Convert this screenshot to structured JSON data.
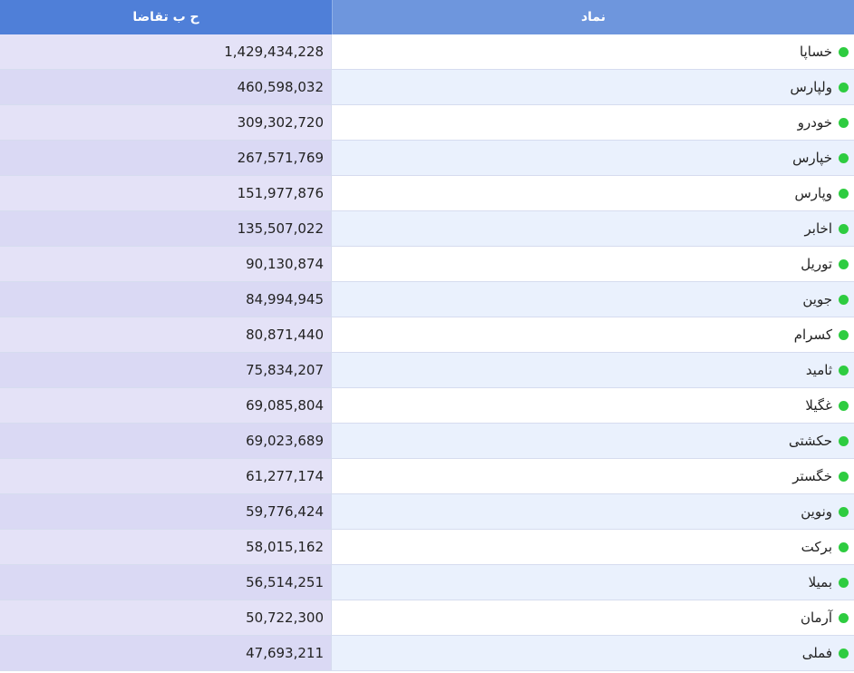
{
  "header": {
    "value_label": "ح ب تقاضا",
    "symbol_label": "نماد"
  },
  "colors": {
    "status_dot": "#2ecc40",
    "header_left": "#4f7fd8",
    "header_right": "#6e96dd"
  },
  "rows": [
    {
      "symbol": "خساپا",
      "value": "1,429,434,228"
    },
    {
      "symbol": "ولپارس",
      "value": "460,598,032"
    },
    {
      "symbol": "خودرو",
      "value": "309,302,720"
    },
    {
      "symbol": "خپارس",
      "value": "267,571,769"
    },
    {
      "symbol": "وپارس",
      "value": "151,977,876"
    },
    {
      "symbol": "اخابر",
      "value": "135,507,022"
    },
    {
      "symbol": "توریل",
      "value": "90,130,874"
    },
    {
      "symbol": "جوین",
      "value": "84,994,945"
    },
    {
      "symbol": "کسرام",
      "value": "80,871,440"
    },
    {
      "symbol": "ثامید",
      "value": "75,834,207"
    },
    {
      "symbol": "غگیلا",
      "value": "69,085,804"
    },
    {
      "symbol": "حکشتی",
      "value": "69,023,689"
    },
    {
      "symbol": "خگستر",
      "value": "61,277,174"
    },
    {
      "symbol": "ونوین",
      "value": "59,776,424"
    },
    {
      "symbol": "برکت",
      "value": "58,015,162"
    },
    {
      "symbol": "بمیلا",
      "value": "56,514,251"
    },
    {
      "symbol": "آرمان",
      "value": "50,722,300"
    },
    {
      "symbol": "فملی",
      "value": "47,693,211"
    }
  ]
}
